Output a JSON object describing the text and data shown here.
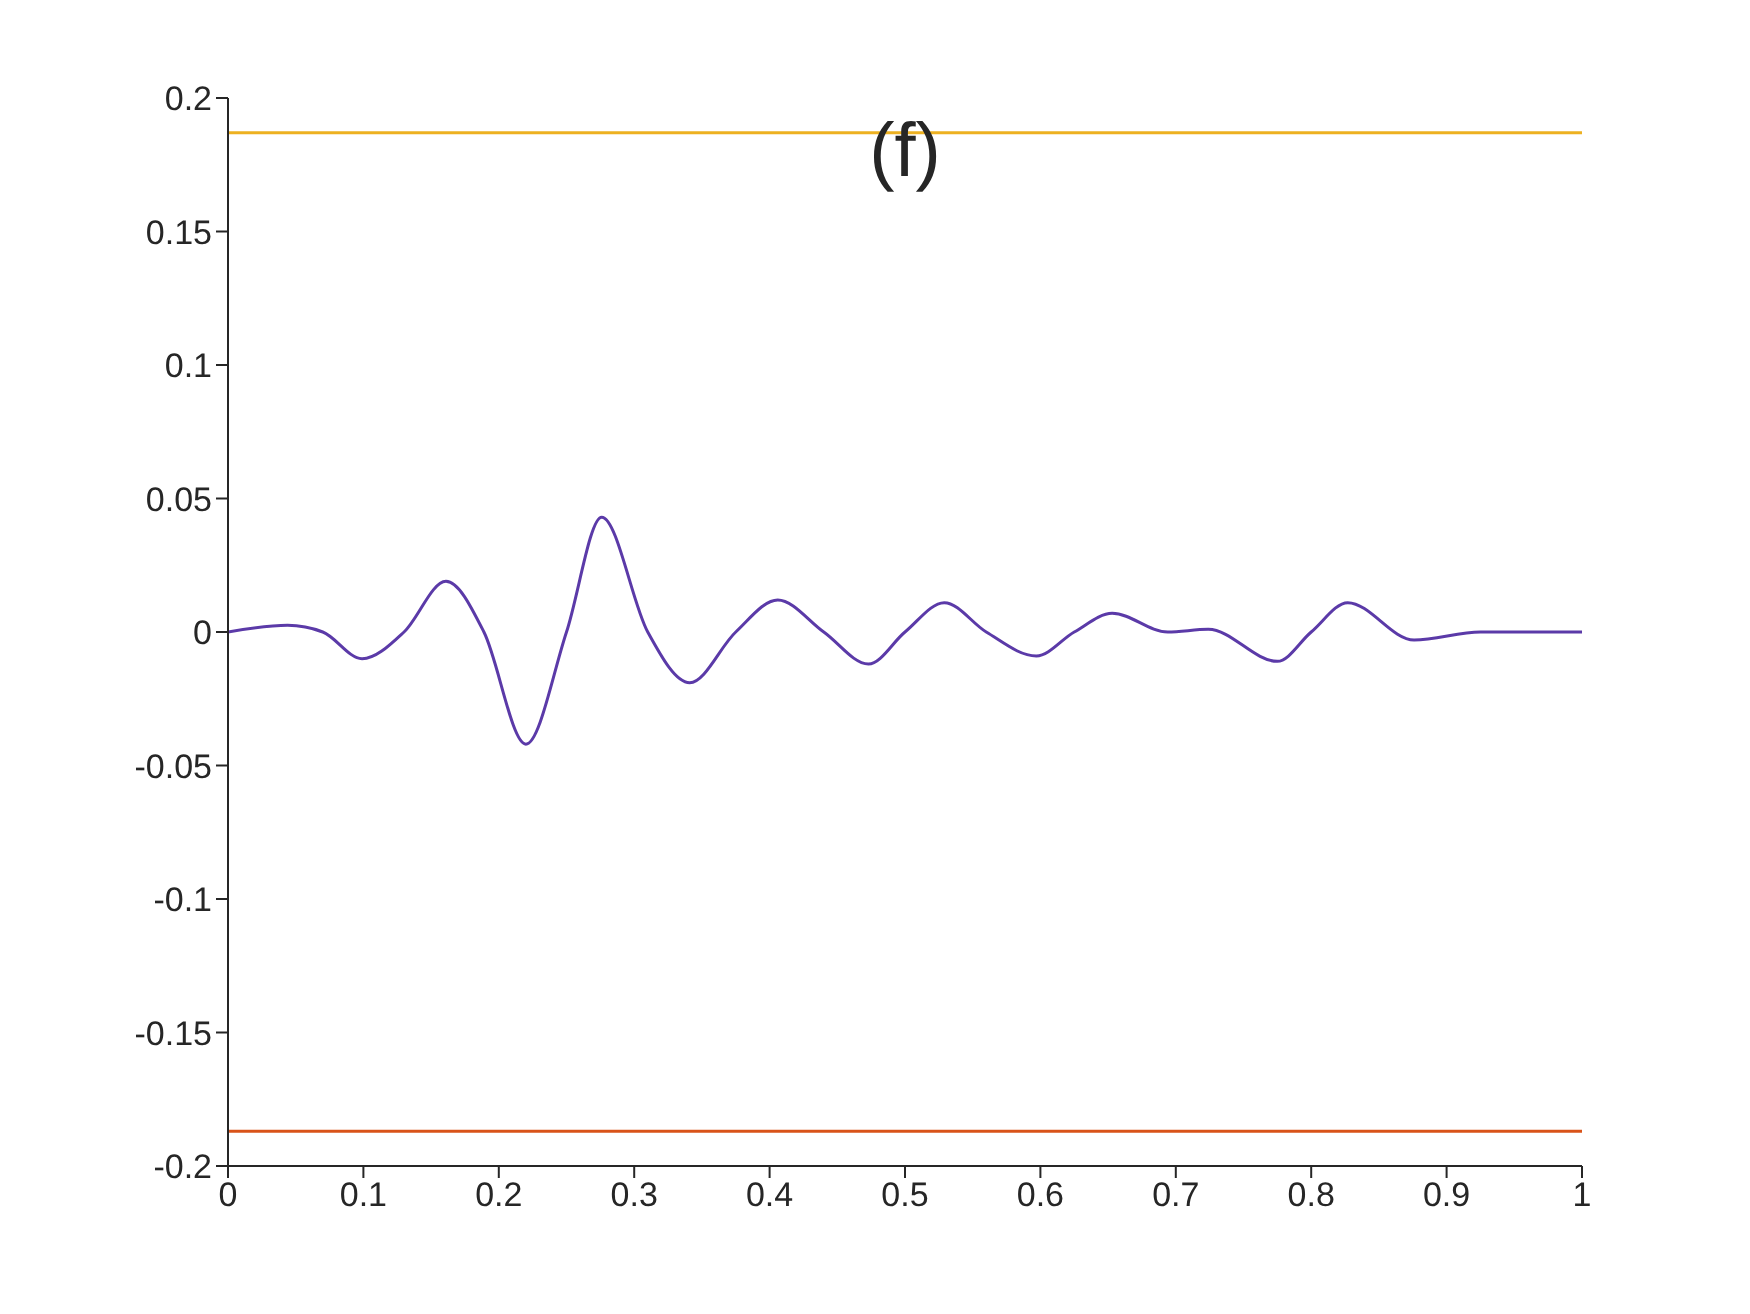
{
  "chart_data": {
    "type": "line",
    "title": "(f)",
    "x": [
      0,
      0.044,
      0.07,
      0.099,
      0.13,
      0.161,
      0.189,
      0.22,
      0.25,
      0.276,
      0.31,
      0.341,
      0.375,
      0.406,
      0.44,
      0.473,
      0.5,
      0.529,
      0.56,
      0.597,
      0.625,
      0.653,
      0.694,
      0.724,
      0.775,
      0.8,
      0.827,
      0.876,
      0.925,
      1
    ],
    "series": [
      {
        "color": "#5b3aa8",
        "values": [
          0,
          0.0025,
          0,
          -0.01,
          0,
          0.019,
          0,
          -0.042,
          0,
          0.043,
          0,
          -0.019,
          0,
          0.012,
          0,
          -0.012,
          0,
          0.011,
          0,
          -0.009,
          0,
          0.007,
          0,
          0.001,
          -0.011,
          0,
          0.011,
          -0.003,
          0,
          0
        ]
      }
    ],
    "xlim": [
      0,
      1
    ],
    "xticks": [
      0,
      0.1,
      0.2,
      0.3,
      0.4,
      0.5,
      0.6,
      0.7,
      0.8,
      0.9,
      1
    ],
    "ylim": [
      -0.2,
      0.2
    ],
    "yticks": [
      -0.2,
      -0.15,
      -0.1,
      -0.05,
      0,
      0.05,
      0.1,
      0.15,
      0.2
    ],
    "ref_lines": [
      {
        "axis": "y",
        "value": 0.187,
        "color": "#edb120"
      },
      {
        "axis": "y",
        "value": -0.187,
        "color": "#d95319"
      }
    ],
    "grid": false,
    "legend": false,
    "marker": "none",
    "line_style": "solid"
  }
}
